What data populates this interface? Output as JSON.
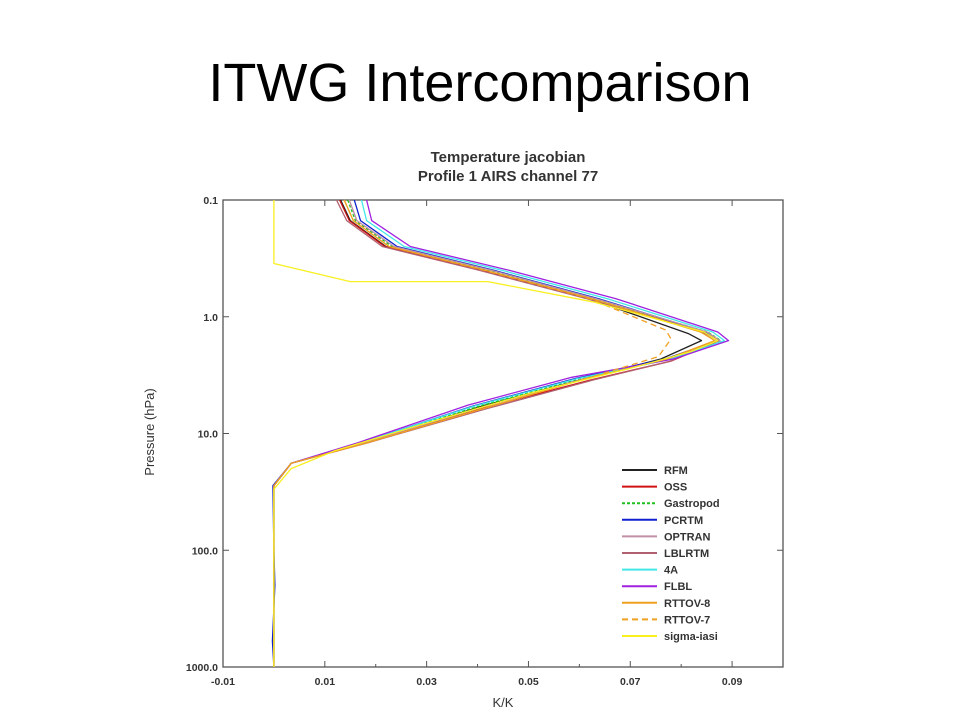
{
  "slide": {
    "title": "ITWG Intercomparison"
  },
  "chart_data": {
    "type": "line",
    "title": "Temperature jacobian",
    "subtitle": "Profile 1 AIRS channel 77",
    "xlabel": "K/K",
    "ylabel": "Pressure (hPa)",
    "xlim": [
      -0.01,
      0.1
    ],
    "ylim": [
      0.1,
      1000
    ],
    "yscale": "log",
    "y_inverted": true,
    "x_ticks": [
      "-0.01",
      "0.01",
      "0.03",
      "0.05",
      "0.07",
      "0.09"
    ],
    "y_ticks": [
      "0.1",
      "1.0",
      "10.0",
      "100.0",
      "1000.0"
    ],
    "legend_position": "bottom-right",
    "series": [
      {
        "name": "RFM",
        "color": "#222222",
        "dash": "",
        "values": [
          [
            0.0131,
            0.1
          ],
          [
            0.015,
            0.15
          ],
          [
            0.022,
            0.25
          ],
          [
            0.041,
            0.4
          ],
          [
            0.062,
            0.7
          ],
          [
            0.0815,
            1.4
          ],
          [
            0.084,
            1.6
          ],
          [
            0.076,
            2.3
          ],
          [
            0.061,
            3.4
          ],
          [
            0.041,
            5.8
          ],
          [
            0.018,
            12
          ],
          [
            0.0034,
            18
          ],
          [
            0,
            28
          ],
          [
            0,
            100
          ],
          [
            0,
            1000
          ]
        ]
      },
      {
        "name": "OSS",
        "color": "#d01010",
        "dash": "",
        "values": [
          [
            0.0129,
            0.1
          ],
          [
            0.0148,
            0.15
          ],
          [
            0.0218,
            0.25
          ],
          [
            0.0408,
            0.4
          ],
          [
            0.062,
            0.7
          ],
          [
            0.0845,
            1.35
          ],
          [
            0.0875,
            1.6
          ],
          [
            0.078,
            2.4
          ],
          [
            0.062,
            3.5
          ],
          [
            0.0415,
            6
          ],
          [
            0.018,
            12
          ],
          [
            0.0034,
            18
          ],
          [
            0,
            28
          ],
          [
            0,
            100
          ],
          [
            0,
            1000
          ]
        ]
      },
      {
        "name": "Gastropod",
        "color": "#20c020",
        "dash": "3 2",
        "values": [
          [
            0.0145,
            0.1
          ],
          [
            0.016,
            0.15
          ],
          [
            0.0232,
            0.25
          ],
          [
            0.042,
            0.4
          ],
          [
            0.0628,
            0.7
          ],
          [
            0.0852,
            1.35
          ],
          [
            0.0878,
            1.6
          ],
          [
            0.0775,
            2.3
          ],
          [
            0.06,
            3.4
          ],
          [
            0.0405,
            5.8
          ],
          [
            0.0172,
            12
          ],
          [
            0.0034,
            18
          ],
          [
            0,
            28
          ],
          [
            0,
            100
          ],
          [
            0,
            1000
          ]
        ]
      },
      {
        "name": "PCRTM",
        "color": "#1020d0",
        "dash": "",
        "values": [
          [
            0.0158,
            0.1
          ],
          [
            0.017,
            0.15
          ],
          [
            0.0242,
            0.25
          ],
          [
            0.0432,
            0.4
          ],
          [
            0.0638,
            0.7
          ],
          [
            0.0848,
            1.35
          ],
          [
            0.0872,
            1.6
          ],
          [
            0.0768,
            2.3
          ],
          [
            0.059,
            3.4
          ],
          [
            0.0392,
            5.8
          ],
          [
            0.017,
            12
          ],
          [
            0.0034,
            18
          ],
          [
            -0.0002,
            28
          ],
          [
            0,
            100
          ],
          [
            0.0002,
            200
          ],
          [
            -0.0003,
            600
          ],
          [
            0,
            1000
          ]
        ]
      },
      {
        "name": "OPTRAN",
        "color": "#c090a8",
        "dash": "",
        "values": [
          [
            0.0148,
            0.1
          ],
          [
            0.0163,
            0.15
          ],
          [
            0.0236,
            0.25
          ],
          [
            0.0427,
            0.4
          ],
          [
            0.0633,
            0.7
          ],
          [
            0.0851,
            1.35
          ],
          [
            0.0876,
            1.6
          ],
          [
            0.0774,
            2.3
          ],
          [
            0.061,
            3.4
          ],
          [
            0.0412,
            5.9
          ],
          [
            0.0176,
            12
          ],
          [
            0.0034,
            18
          ],
          [
            0,
            28
          ],
          [
            0,
            100
          ],
          [
            0,
            1000
          ]
        ]
      },
      {
        "name": "LBLRTM",
        "color": "#b06070",
        "dash": "",
        "values": [
          [
            0.0123,
            0.1
          ],
          [
            0.0143,
            0.15
          ],
          [
            0.0213,
            0.25
          ],
          [
            0.0403,
            0.4
          ],
          [
            0.0615,
            0.7
          ],
          [
            0.0842,
            1.35
          ],
          [
            0.0873,
            1.6
          ],
          [
            0.0779,
            2.4
          ],
          [
            0.0625,
            3.5
          ],
          [
            0.042,
            6.1
          ],
          [
            0.0185,
            12
          ],
          [
            0.0034,
            18
          ],
          [
            0,
            28
          ],
          [
            0,
            100
          ],
          [
            0,
            1000
          ]
        ]
      },
      {
        "name": "4A",
        "color": "#40e8e8",
        "dash": "",
        "values": [
          [
            0.0172,
            0.1
          ],
          [
            0.0182,
            0.15
          ],
          [
            0.0256,
            0.25
          ],
          [
            0.0448,
            0.4
          ],
          [
            0.0655,
            0.7
          ],
          [
            0.0862,
            1.35
          ],
          [
            0.0885,
            1.6
          ],
          [
            0.0781,
            2.3
          ],
          [
            0.0595,
            3.4
          ],
          [
            0.0395,
            5.8
          ],
          [
            0.017,
            12
          ],
          [
            0.0034,
            18
          ],
          [
            0,
            28
          ],
          [
            0,
            100
          ],
          [
            0,
            1000
          ]
        ]
      },
      {
        "name": "FLBL",
        "color": "#a020e0",
        "dash": "",
        "values": [
          [
            0.0182,
            0.1
          ],
          [
            0.0192,
            0.15
          ],
          [
            0.0268,
            0.25
          ],
          [
            0.0462,
            0.4
          ],
          [
            0.0672,
            0.7
          ],
          [
            0.0872,
            1.35
          ],
          [
            0.0893,
            1.6
          ],
          [
            0.0785,
            2.3
          ],
          [
            0.0585,
            3.3
          ],
          [
            0.0382,
            5.7
          ],
          [
            0.0165,
            12
          ],
          [
            0.0034,
            18
          ],
          [
            0,
            28
          ],
          [
            0,
            100
          ],
          [
            0,
            1000
          ]
        ]
      },
      {
        "name": "RTTOV-8",
        "color": "#f0a020",
        "dash": "",
        "values": [
          [
            0.0138,
            0.1
          ],
          [
            0.0156,
            0.15
          ],
          [
            0.0226,
            0.25
          ],
          [
            0.0415,
            0.4
          ],
          [
            0.0624,
            0.7
          ],
          [
            0.0838,
            1.35
          ],
          [
            0.0866,
            1.6
          ],
          [
            0.0772,
            2.3
          ],
          [
            0.0612,
            3.4
          ],
          [
            0.0418,
            6
          ],
          [
            0.0183,
            12
          ],
          [
            0.0034,
            18
          ],
          [
            0,
            28
          ],
          [
            0,
            100
          ],
          [
            0,
            1000
          ]
        ]
      },
      {
        "name": "RTTOV-7",
        "color": "#f0a020",
        "dash": "6 4",
        "values": [
          [
            0.0138,
            0.1
          ],
          [
            0.0156,
            0.15
          ],
          [
            0.0226,
            0.25
          ],
          [
            0.0412,
            0.4
          ],
          [
            0.062,
            0.7
          ],
          [
            0.077,
            1.3
          ],
          [
            0.078,
            1.55
          ],
          [
            0.0755,
            2.2
          ],
          [
            0.0612,
            3.4
          ],
          [
            0.0418,
            6
          ],
          [
            0.0183,
            12
          ],
          [
            0.0034,
            18
          ],
          [
            0,
            28
          ],
          [
            0,
            100
          ],
          [
            0,
            1000
          ]
        ]
      },
      {
        "name": "sigma-iasi",
        "color": "#f8f020",
        "dash": "",
        "values": [
          [
            0,
            0.1
          ],
          [
            0,
            0.35
          ],
          [
            0.015,
            0.5
          ],
          [
            0.042,
            0.5
          ],
          [
            0.063,
            0.75
          ],
          [
            0.0845,
            1.35
          ],
          [
            0.0872,
            1.6
          ],
          [
            0.0818,
            2.0
          ],
          [
            0.0695,
            2.8
          ],
          [
            0.0505,
            4.5
          ],
          [
            0.0285,
            8.5
          ],
          [
            0.012,
            14
          ],
          [
            0.0034,
            20
          ],
          [
            0,
            30
          ],
          [
            0,
            100
          ],
          [
            0,
            1000
          ]
        ]
      }
    ]
  }
}
